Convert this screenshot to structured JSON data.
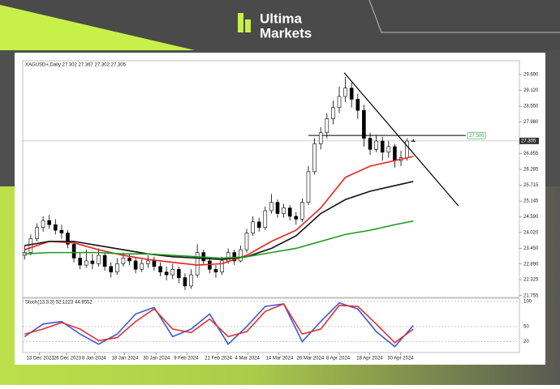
{
  "header": {
    "brand_top": "Ultima",
    "brand_bottom": "Markets"
  },
  "chart_data": [
    {
      "type": "candlestick",
      "title": "XAGUSD+,Daily 27.302 27.367 27.302 27.305",
      "up_color": "#ffffff",
      "down_color": "#000000",
      "outline_color": "#000000",
      "open": [
        23.2,
        23.3,
        23.8,
        24.2,
        24.45,
        24.3,
        24.1,
        24.0,
        23.6,
        23.1,
        22.85,
        23.0,
        22.9,
        23.2,
        22.8,
        22.6,
        22.9,
        23.1,
        23.0,
        22.7,
        22.9,
        23.0,
        22.8,
        22.6,
        22.5,
        22.7,
        22.4,
        22.1,
        22.5,
        23.3,
        23.0,
        22.7,
        22.6,
        23.0,
        23.3,
        23.0,
        23.4,
        24.0,
        24.4,
        24.2,
        24.8,
        25.1,
        24.7,
        24.9,
        24.6,
        24.5,
        25.1,
        26.2,
        27.2,
        27.6,
        28.1,
        28.5,
        28.9,
        29.2,
        28.8,
        28.4,
        27.4,
        27.0,
        27.3,
        26.9,
        27.1,
        26.6,
        26.7,
        27.302
      ],
      "high": [
        23.55,
        23.95,
        24.35,
        24.6,
        24.65,
        24.5,
        24.3,
        24.1,
        23.7,
        23.3,
        23.4,
        23.25,
        23.45,
        23.3,
        22.95,
        23.1,
        23.3,
        23.25,
        23.1,
        23.05,
        23.2,
        23.15,
        22.95,
        22.8,
        22.9,
        22.8,
        22.55,
        22.7,
        23.6,
        23.4,
        23.1,
        22.85,
        23.15,
        23.45,
        23.4,
        23.55,
        24.15,
        24.6,
        24.55,
        24.95,
        25.4,
        25.2,
        25.05,
        25.0,
        24.75,
        25.25,
        26.4,
        27.4,
        27.8,
        28.3,
        28.75,
        29.25,
        29.6,
        29.4,
        29.0,
        28.6,
        27.6,
        27.5,
        27.45,
        27.3,
        27.2,
        26.95,
        27.4,
        27.367
      ],
      "low": [
        23.05,
        23.2,
        23.7,
        24.05,
        24.15,
        23.95,
        23.8,
        23.45,
        22.95,
        22.7,
        22.75,
        22.7,
        22.8,
        22.65,
        22.4,
        22.5,
        22.8,
        22.85,
        22.55,
        22.6,
        22.75,
        22.65,
        22.45,
        22.3,
        22.35,
        22.2,
        21.95,
        22.0,
        22.4,
        22.85,
        22.55,
        22.4,
        22.5,
        22.9,
        22.85,
        22.95,
        23.3,
        23.9,
        24.05,
        24.1,
        24.7,
        24.55,
        24.55,
        24.45,
        24.3,
        24.4,
        25.0,
        26.1,
        27.0,
        27.4,
        27.9,
        28.3,
        28.7,
        28.5,
        28.1,
        27.1,
        26.8,
        26.9,
        26.6,
        26.7,
        26.35,
        26.4,
        26.6,
        27.302
      ],
      "close": [
        23.3,
        23.8,
        24.2,
        24.45,
        24.3,
        24.1,
        24.0,
        23.6,
        23.1,
        22.85,
        23.0,
        22.9,
        23.2,
        22.8,
        22.6,
        22.9,
        23.1,
        23.0,
        22.7,
        22.9,
        23.0,
        22.8,
        22.6,
        22.5,
        22.7,
        22.4,
        22.1,
        22.5,
        23.3,
        23.0,
        22.7,
        22.6,
        23.0,
        23.3,
        23.0,
        23.4,
        24.0,
        24.4,
        24.2,
        24.8,
        25.1,
        24.7,
        24.9,
        24.6,
        24.5,
        25.1,
        26.2,
        27.2,
        27.6,
        28.1,
        28.5,
        28.9,
        29.2,
        28.8,
        28.4,
        27.4,
        27.0,
        27.3,
        26.9,
        27.1,
        26.6,
        26.7,
        27.3,
        27.305
      ],
      "series": [
        {
          "color": "#e8231f",
          "x": [
            0,
            4,
            8,
            12,
            16,
            20,
            24,
            28,
            32,
            36,
            40,
            44,
            48,
            52,
            56,
            60,
            63
          ],
          "values": [
            23.4,
            23.7,
            23.65,
            23.4,
            23.2,
            23.05,
            22.95,
            22.85,
            22.9,
            23.2,
            23.7,
            24.1,
            24.9,
            26.0,
            26.4,
            26.6,
            26.75
          ]
        },
        {
          "color": "#111111",
          "x": [
            0,
            4,
            8,
            12,
            16,
            20,
            24,
            28,
            32,
            36,
            40,
            44,
            48,
            52,
            56,
            60,
            63
          ],
          "values": [
            23.55,
            23.7,
            23.7,
            23.55,
            23.4,
            23.25,
            23.15,
            23.1,
            23.05,
            23.15,
            23.45,
            23.9,
            24.7,
            25.2,
            25.5,
            25.7,
            25.85
          ]
        },
        {
          "color": "#1f9a1f",
          "x": [
            0,
            4,
            8,
            12,
            16,
            20,
            24,
            28,
            32,
            36,
            40,
            44,
            48,
            52,
            56,
            60,
            63
          ],
          "values": [
            23.25,
            23.3,
            23.3,
            23.3,
            23.25,
            23.25,
            23.2,
            23.15,
            23.1,
            23.15,
            23.3,
            23.45,
            23.7,
            23.95,
            24.1,
            24.3,
            24.43
          ]
        }
      ],
      "trendline": {
        "color": "#000000",
        "x": [
          51.8,
          70.3
        ],
        "values": [
          29.75,
          24.98
        ]
      },
      "hline": {
        "color": "#000000",
        "label_color": "#2f9e44",
        "value": 27.5,
        "label": "27.500"
      },
      "xlim": [
        -0.3,
        80.2
      ],
      "xticks": [
        {
          "value": 2.4,
          "label": "13 Dec 2023"
        },
        {
          "value": 6.8,
          "label": "26 Dec 2023"
        },
        {
          "value": 11.4,
          "label": "8 Jan 2024"
        },
        {
          "value": 16.2,
          "label": "18 Jan 2024"
        },
        {
          "value": 21.3,
          "label": "30 Jan 2024"
        },
        {
          "value": 26.3,
          "label": "9 Feb 2024"
        },
        {
          "value": 31.3,
          "label": "21 Feb 2024"
        },
        {
          "value": 36.2,
          "label": "4 Mar 2024"
        },
        {
          "value": 41.2,
          "label": "14 Mar 2024"
        },
        {
          "value": 46.2,
          "label": "26 Mar 2024"
        },
        {
          "value": 51,
          "label": "8 Apr 2024"
        },
        {
          "value": 55.9,
          "label": "18 Apr 2024"
        },
        {
          "value": 60.9,
          "label": "30 Apr 2024"
        }
      ],
      "ylim": [
        21.69,
        30.18
      ],
      "yticks": [
        21.755,
        22.325,
        {
          "value": 22.89,
          "label": "22.890"
        },
        {
          "value": 23.45,
          "label": "23.450"
        },
        {
          "value": 24.02,
          "label": "24.020"
        },
        {
          "value": 24.59,
          "label": "24.590"
        },
        25.145,
        25.715,
        26.285,
        26.855,
        {
          "value": 27.98,
          "label": "27.980"
        },
        {
          "value": 28.55,
          "label": "28.550"
        },
        {
          "value": 29.12,
          "label": "29.120"
        },
        {
          "value": 29.69,
          "label": "29.690"
        }
      ]
    },
    {
      "type": "line",
      "title": "Stoch(13,3,3) 52.1223 44.9552",
      "series": [
        {
          "color": "#3b5bdb",
          "x": [
            0,
            3,
            6,
            9,
            12,
            15,
            18,
            21,
            24,
            27,
            30,
            33,
            36,
            39,
            42,
            45,
            48,
            51,
            54,
            57,
            60,
            63
          ],
          "values": [
            30,
            55,
            60,
            35,
            15,
            35,
            75,
            88,
            30,
            45,
            75,
            15,
            50,
            90,
            95,
            20,
            60,
            97,
            85,
            40,
            10,
            52
          ]
        },
        {
          "color": "#e03131",
          "x": [
            0,
            3,
            6,
            9,
            12,
            15,
            18,
            21,
            24,
            27,
            30,
            33,
            36,
            39,
            42,
            45,
            48,
            51,
            54,
            57,
            60,
            63
          ],
          "values": [
            35,
            45,
            58,
            45,
            22,
            28,
            60,
            85,
            45,
            38,
            65,
            30,
            40,
            80,
            95,
            35,
            45,
            92,
            90,
            55,
            18,
            45
          ]
        }
      ],
      "ylim": [
        0,
        103
      ],
      "yticks": [
        20,
        50,
        100
      ]
    }
  ]
}
